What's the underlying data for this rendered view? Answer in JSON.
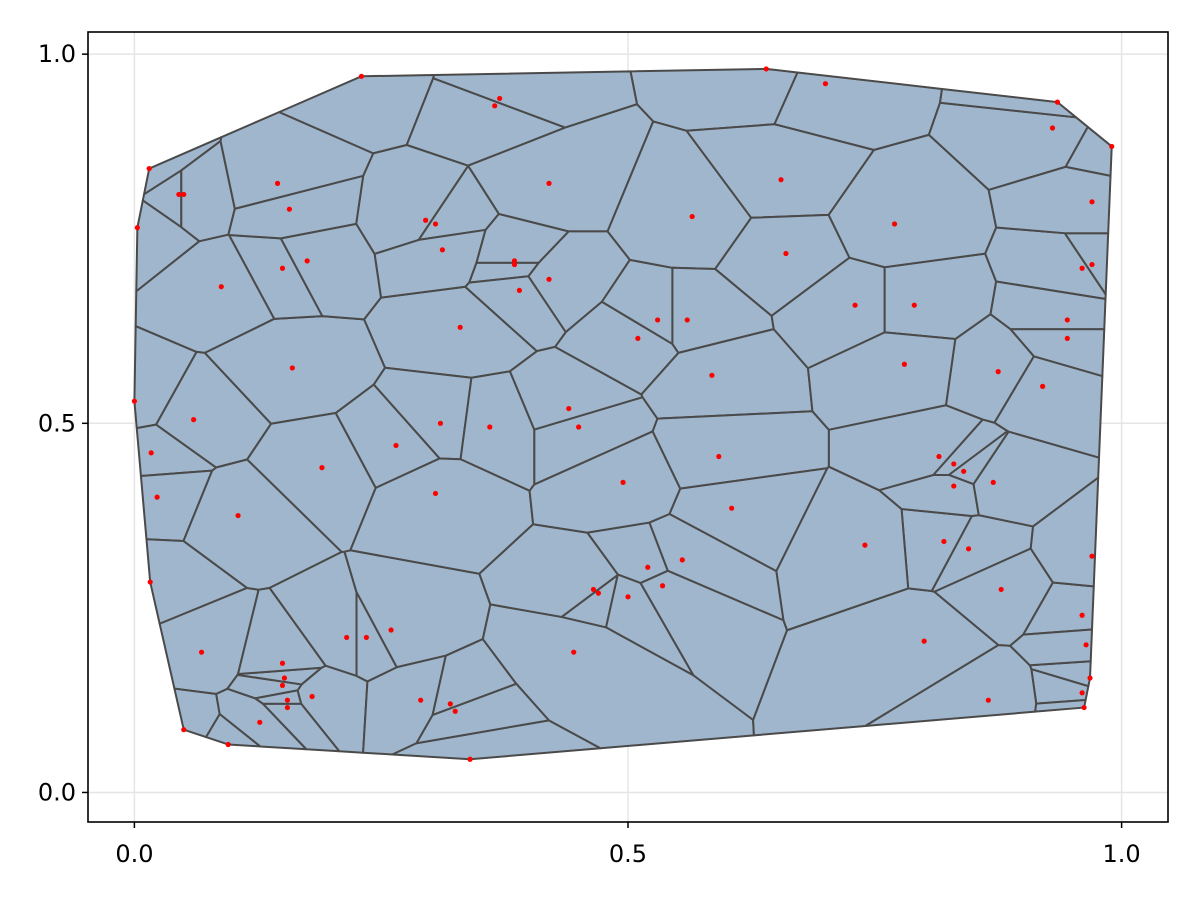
{
  "chart_data": {
    "type": "scatter",
    "title": "",
    "xlabel": "",
    "ylabel": "",
    "xlim": [
      -0.047,
      1.047
    ],
    "ylim": [
      -0.04,
      1.03
    ],
    "grid": true,
    "xticks": [
      0.0,
      0.5,
      1.0
    ],
    "xtick_labels": [
      "0.0",
      "0.5",
      "1.0"
    ],
    "yticks": [
      0.0,
      0.5,
      1.0
    ],
    "ytick_labels": [
      "0.0",
      "0.5",
      "1.0"
    ],
    "colors": {
      "cell_fill": "#a0b6cc",
      "cell_edge": "#4a4a4a",
      "point": "#ff0000",
      "grid": "#e5e5e5",
      "frame": "#000000"
    },
    "points": {
      "x": [
        0.23,
        0.64,
        0.7,
        0.93,
        0.99,
        0.015,
        0.045,
        0.05,
        0.003,
        0.0,
        0.017,
        0.023,
        0.016,
        0.068,
        0.095,
        0.05,
        0.15,
        0.152,
        0.15,
        0.155,
        0.18,
        0.215,
        0.26,
        0.29,
        0.32,
        0.34,
        0.33,
        0.365,
        0.37,
        0.385,
        0.39,
        0.385,
        0.42,
        0.45,
        0.44,
        0.42,
        0.295,
        0.305,
        0.312,
        0.16,
        0.15,
        0.088,
        0.06,
        0.105,
        0.19,
        0.265,
        0.175,
        0.157,
        0.145,
        0.127,
        0.155,
        0.31,
        0.36,
        0.305,
        0.445,
        0.51,
        0.53,
        0.565,
        0.56,
        0.585,
        0.592,
        0.655,
        0.66,
        0.73,
        0.79,
        0.78,
        0.77,
        0.875,
        0.92,
        0.945,
        0.96,
        0.97,
        0.97,
        0.96,
        0.865,
        0.8,
        0.845,
        0.82,
        0.83,
        0.84,
        0.87,
        0.74,
        0.605,
        0.555,
        0.52,
        0.5,
        0.47,
        0.535,
        0.465,
        0.495,
        0.325,
        0.235,
        0.945,
        0.878,
        0.83,
        0.815,
        0.96,
        0.968,
        0.964,
        0.962,
        0.97,
        0.935
      ],
      "y": [
        0.97,
        0.98,
        0.96,
        0.9,
        0.875,
        0.845,
        0.81,
        0.81,
        0.765,
        0.53,
        0.46,
        0.4,
        0.285,
        0.19,
        0.065,
        0.085,
        0.145,
        0.155,
        0.175,
        0.125,
        0.13,
        0.21,
        0.22,
        0.125,
        0.12,
        0.045,
        0.63,
        0.93,
        0.94,
        0.715,
        0.68,
        0.72,
        0.825,
        0.495,
        0.52,
        0.695,
        0.775,
        0.77,
        0.735,
        0.575,
        0.71,
        0.685,
        0.505,
        0.375,
        0.44,
        0.47,
        0.72,
        0.79,
        0.825,
        0.095,
        0.115,
        0.5,
        0.495,
        0.405,
        0.19,
        0.615,
        0.64,
        0.78,
        0.64,
        0.565,
        0.455,
        0.83,
        0.73,
        0.66,
        0.66,
        0.58,
        0.77,
        0.57,
        0.55,
        0.615,
        0.71,
        0.715,
        0.8,
        0.135,
        0.125,
        0.205,
        0.33,
        0.34,
        0.445,
        0.435,
        0.42,
        0.335,
        0.385,
        0.315,
        0.305,
        0.265,
        0.27,
        0.28,
        0.275,
        0.42,
        0.11,
        0.21,
        0.64,
        0.275,
        0.415,
        0.455,
        0.24,
        0.155,
        0.2,
        0.115,
        0.32,
        0.935
      ],
      "_note_": ""
    },
    "cell_edges": []
  }
}
